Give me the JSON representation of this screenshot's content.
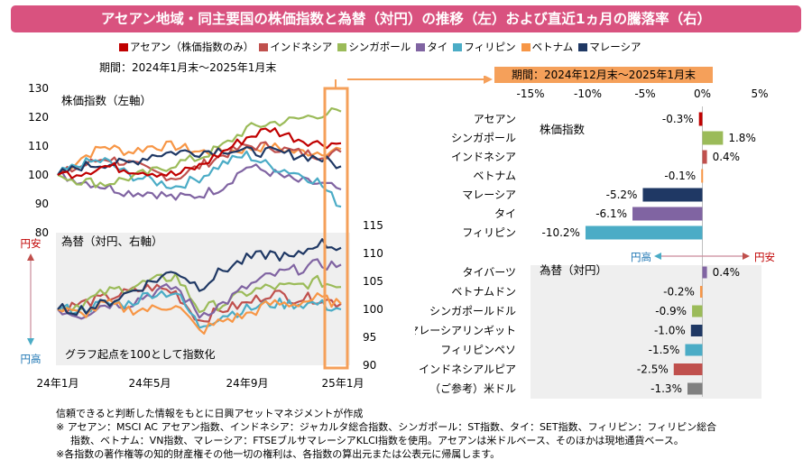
{
  "title": "アセアン地域・同主要国の株価指数と為替（対円）の推移（左）および直近1ヵ月の騰落率（右）",
  "colors": {
    "title_bg": "#d9527f",
    "asean": "#c00000",
    "indonesia": "#c0504d",
    "singapore": "#9bbb59",
    "thailand": "#8064a2",
    "philippines": "#4bacc6",
    "vietnam": "#f79646",
    "malaysia": "#1f3864",
    "usd": "#808080",
    "highlight": "#f5a05a"
  },
  "legend": [
    {
      "label": "アセアン（株価指数のみ）",
      "color": "#c00000"
    },
    {
      "label": "インドネシア",
      "color": "#c0504d"
    },
    {
      "label": "シンガポール",
      "color": "#9bbb59"
    },
    {
      "label": "タイ",
      "color": "#8064a2"
    },
    {
      "label": "フィリピン",
      "color": "#4bacc6"
    },
    {
      "label": "ベトナム",
      "color": "#f79646"
    },
    {
      "label": "マレーシア",
      "color": "#1f3864"
    }
  ],
  "left_chart": {
    "period": "期間：2024年1月末～2025年1月末",
    "stock_label": "株価指数（左軸）",
    "fx_label": "為替（対円、右軸）",
    "note": "グラフ起点を100として指数化",
    "arrow_up_label": "円安",
    "arrow_down_label": "円高"
  },
  "right_chart": {
    "period": "期間：2024年12月末～2025年1月末",
    "stock_group_label": "株価指数",
    "fx_group_label": "為替（対円）",
    "arrow_left_label": "円高",
    "arrow_right_label": "円安"
  },
  "chart_data": [
    {
      "type": "line",
      "title": "株価指数（左軸）",
      "x_tick_labels": [
        "24年1月",
        "24年5月",
        "24年9月",
        "25年1月"
      ],
      "ylim": [
        80,
        130
      ],
      "y_ticks": [
        "80",
        "90",
        "100",
        "110",
        "120",
        "130"
      ],
      "series": [
        {
          "name": "アセアン",
          "key": "asean",
          "values": [
            100,
            101,
            103,
            102,
            101,
            100,
            103,
            108,
            113,
            116,
            113,
            111,
            111
          ]
        },
        {
          "name": "インドネシア",
          "key": "indonesia",
          "values": [
            100,
            103,
            106,
            104,
            101,
            99,
            103,
            107,
            110,
            110,
            108,
            107,
            108
          ]
        },
        {
          "name": "シンガポール",
          "key": "singapore",
          "values": [
            100,
            98,
            97,
            99,
            101,
            104,
            106,
            110,
            116,
            118,
            119,
            121,
            122
          ]
        },
        {
          "name": "タイ",
          "key": "thailand",
          "values": [
            100,
            98,
            96,
            94,
            94,
            92,
            93,
            96,
            103,
            101,
            98,
            97,
            95
          ]
        },
        {
          "name": "フィリピン",
          "key": "philippines",
          "values": [
            100,
            104,
            105,
            100,
            98,
            96,
            99,
            104,
            107,
            103,
            101,
            98,
            89
          ]
        },
        {
          "name": "ベトナム",
          "key": "vietnam",
          "values": [
            100,
            106,
            110,
            108,
            110,
            110,
            108,
            108,
            109,
            110,
            108,
            108,
            109
          ]
        },
        {
          "name": "マレーシア",
          "key": "malaysia",
          "values": [
            100,
            103,
            104,
            104,
            107,
            108,
            108,
            109,
            108,
            108,
            107,
            106,
            103
          ]
        }
      ]
    },
    {
      "type": "line",
      "title": "為替（対円、右軸）",
      "ylim": [
        90,
        115
      ],
      "y_ticks": [
        "90",
        "95",
        "100",
        "105",
        "110",
        "115"
      ],
      "series": [
        {
          "name": "インドネシア",
          "key": "indonesia",
          "values": [
            100,
            101,
            102,
            103,
            104,
            103,
            98,
            100,
            101,
            103,
            102,
            102,
            101
          ]
        },
        {
          "name": "シンガポール",
          "key": "singapore",
          "values": [
            100,
            101,
            103,
            104,
            105,
            106,
            100,
            101,
            103,
            104,
            104,
            105,
            104
          ]
        },
        {
          "name": "タイ",
          "key": "thailand",
          "values": [
            100,
            99,
            101,
            101,
            103,
            104,
            99,
            101,
            104,
            106,
            107,
            108,
            108
          ]
        },
        {
          "name": "フィリピン",
          "key": "philippines",
          "values": [
            100,
            100,
            101,
            101,
            103,
            103,
            97,
            99,
            100,
            101,
            101,
            101,
            100
          ]
        },
        {
          "name": "ベトナム",
          "key": "vietnam",
          "values": [
            100,
            99,
            101,
            100,
            100,
            101,
            96,
            98,
            99,
            101,
            101,
            102,
            101
          ]
        },
        {
          "name": "マレーシア",
          "key": "malaysia",
          "values": [
            100,
            100,
            101,
            103,
            105,
            107,
            104,
            107,
            109,
            110,
            109,
            112,
            111
          ]
        }
      ]
    },
    {
      "type": "bar",
      "orientation": "horizontal",
      "title": "直近1ヵ月の騰落率",
      "x_tick_labels": [
        "-15%",
        "-10%",
        "-5%",
        "0%",
        "5%"
      ],
      "xlim": [
        -15,
        5
      ],
      "stock": [
        {
          "label": "アセアン",
          "value": -0.3,
          "value_label": "-0.3%",
          "key": "asean"
        },
        {
          "label": "シンガポール",
          "value": 1.8,
          "value_label": "1.8%",
          "key": "singapore"
        },
        {
          "label": "インドネシア",
          "value": 0.4,
          "value_label": "0.4%",
          "key": "indonesia"
        },
        {
          "label": "ベトナム",
          "value": -0.1,
          "value_label": "-0.1%",
          "key": "vietnam"
        },
        {
          "label": "マレーシア",
          "value": -5.2,
          "value_label": "-5.2%",
          "key": "malaysia"
        },
        {
          "label": "タイ",
          "value": -6.1,
          "value_label": "-6.1%",
          "key": "thailand"
        },
        {
          "label": "フィリピン",
          "value": -10.2,
          "value_label": "-10.2%",
          "key": "philippines"
        }
      ],
      "fx": [
        {
          "label": "タイバーツ",
          "value": 0.4,
          "value_label": "0.4%",
          "key": "thailand"
        },
        {
          "label": "ベトナムドン",
          "value": -0.2,
          "value_label": "-0.2%",
          "key": "vietnam"
        },
        {
          "label": "シンガポールドル",
          "value": -0.9,
          "value_label": "-0.9%",
          "key": "singapore"
        },
        {
          "label": "マレーシアリンギット",
          "value": -1.0,
          "value_label": "-1.0%",
          "key": "malaysia"
        },
        {
          "label": "フィリピンペソ",
          "value": -1.5,
          "value_label": "-1.5%",
          "key": "philippines"
        },
        {
          "label": "インドネシアルピア",
          "value": -2.5,
          "value_label": "-2.5%",
          "key": "indonesia"
        },
        {
          "label": "（ご参考）米ドル",
          "value": -1.3,
          "value_label": "-1.3%",
          "key": "usd"
        }
      ]
    }
  ],
  "footnotes": [
    "信頼できると判断した情報をもとに日興アセットマネジメントが作成",
    "※ アセアン：MSCI AC アセアン指数、インドネシア：ジャカルタ総合指数、シンガポール：ST指数、タイ：SET指数、フィリピン：フィリピン総合",
    "指数、ベトナム：VN指数、マレーシア：FTSEブルサマレーシアKLCI指数を使用。アセアンは米ドルベース、そのほかは現地通貨ベース。",
    "※各指数の著作権等の知的財産権その他一切の権利は、各指数の算出元または公表元に帰属します。"
  ]
}
